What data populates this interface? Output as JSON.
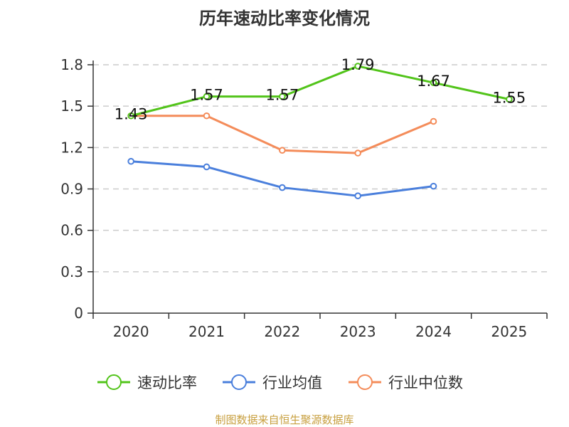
{
  "chart_data": {
    "type": "line",
    "title": "历年速动比率变化情况",
    "categories": [
      "2020",
      "2021",
      "2022",
      "2023",
      "2024",
      "2025"
    ],
    "ylim": [
      0,
      1.8
    ],
    "yticks": [
      "0",
      "0.3",
      "0.6",
      "0.9",
      "1.2",
      "1.5",
      "1.8"
    ],
    "grid": true,
    "legend_position": "bottom",
    "series": [
      {
        "name": "速动比率",
        "color": "#52c41a",
        "labeled": true,
        "values": [
          1.43,
          1.57,
          1.57,
          1.79,
          1.67,
          1.55
        ],
        "labels": [
          "1.43",
          "1.57",
          "1.57",
          "1.79",
          "1.67",
          "1.55"
        ]
      },
      {
        "name": "行业均值",
        "color": "#4a7fdc",
        "labeled": false,
        "values": [
          1.1,
          1.06,
          0.91,
          0.85,
          0.92,
          null
        ]
      },
      {
        "name": "行业中位数",
        "color": "#f48c5a",
        "labeled": false,
        "values": [
          1.43,
          1.43,
          1.18,
          1.16,
          1.39,
          null
        ]
      }
    ]
  },
  "source": "制图数据来自恒生聚源数据库"
}
